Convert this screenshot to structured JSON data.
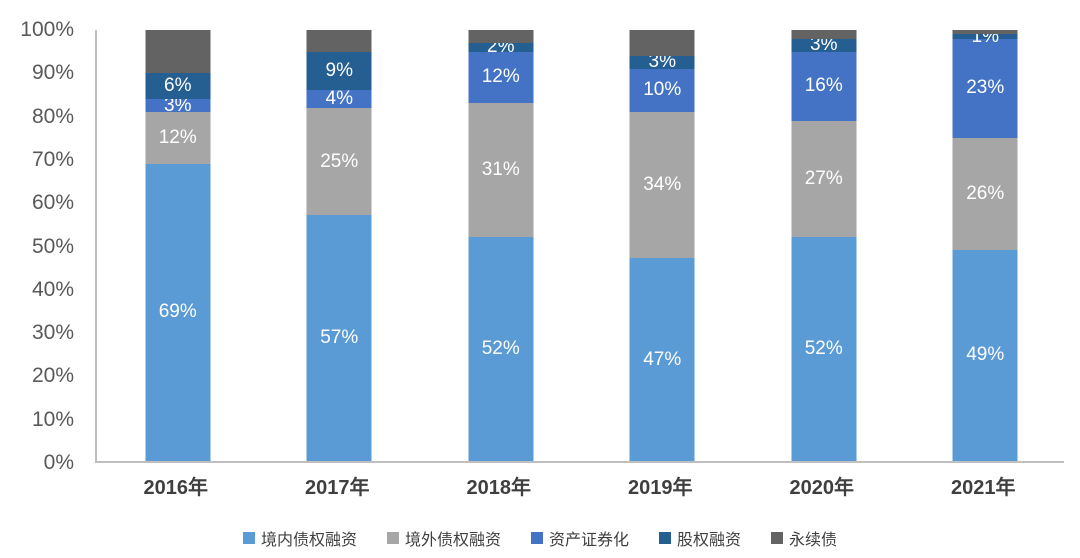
{
  "chart_data": {
    "type": "bar",
    "stacked": true,
    "percent_stacked": true,
    "title": "",
    "xlabel": "",
    "ylabel": "",
    "ylim": [
      0,
      100
    ],
    "grid": false,
    "legend_position": "bottom",
    "categories": [
      "2016年",
      "2017年",
      "2018年",
      "2019年",
      "2020年",
      "2021年"
    ],
    "y_ticks": [
      "100%",
      "90%",
      "80%",
      "70%",
      "60%",
      "50%",
      "40%",
      "30%",
      "20%",
      "10%",
      "0%"
    ],
    "series": [
      {
        "name": "境内债权融资",
        "color": "#5B9BD5",
        "values": [
          69,
          57,
          52,
          47,
          52,
          49
        ],
        "labels": [
          "69%",
          "57%",
          "52%",
          "47%",
          "52%",
          "49%"
        ]
      },
      {
        "name": "境外债权融资",
        "color": "#A6A6A6",
        "values": [
          12,
          25,
          31,
          34,
          27,
          26
        ],
        "labels": [
          "12%",
          "25%",
          "31%",
          "34%",
          "27%",
          "26%"
        ]
      },
      {
        "name": "资产证券化",
        "color": "#4472C4",
        "values": [
          3,
          4,
          12,
          10,
          16,
          23
        ],
        "labels": [
          "3%",
          "4%",
          "12%",
          "10%",
          "16%",
          "23%"
        ]
      },
      {
        "name": "股权融资",
        "color": "#255E91",
        "values": [
          6,
          9,
          2,
          3,
          3,
          1
        ],
        "labels": [
          "6%",
          "9%",
          "2%",
          "3%",
          "3%",
          "1%"
        ]
      },
      {
        "name": "永续债",
        "color": "#636363",
        "values": [
          10,
          5,
          3,
          6,
          2,
          1
        ],
        "labels": [
          "",
          "",
          "",
          "",
          "",
          ""
        ]
      }
    ],
    "axis_color": "#BFBFBF",
    "y_tick_color": "#595959",
    "x_tick_color": "#3F3F3F",
    "legend_text_color": "#404040"
  }
}
